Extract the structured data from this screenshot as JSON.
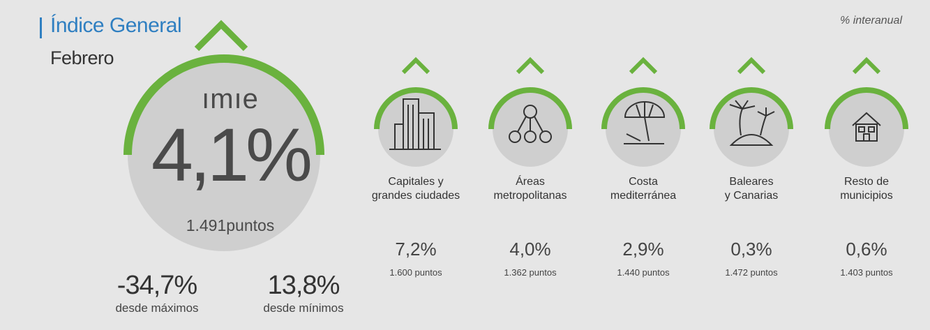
{
  "header": {
    "title": "Índice General",
    "month": "Febrero",
    "yoy_note": "% interanual"
  },
  "main": {
    "brand": "ımıe",
    "value": "4,1%",
    "points": "1.491puntos",
    "trend": "up"
  },
  "stats": [
    {
      "value": "-34,7%",
      "label": "desde máximos"
    },
    {
      "value": "13,8%",
      "label": "desde mínimos"
    }
  ],
  "categories": [
    {
      "line1": "Capitales y",
      "line2": "grandes ciudades",
      "value": "7,2%",
      "points": "1.600 puntos",
      "icon": "buildings-icon",
      "trend": "up"
    },
    {
      "line1": "Áreas",
      "line2": "metropolitanas",
      "value": "4,0%",
      "points": "1.362 puntos",
      "icon": "network-icon",
      "trend": "up"
    },
    {
      "line1": "Costa",
      "line2": "mediterránea",
      "value": "2,9%",
      "points": "1.440 puntos",
      "icon": "beach-umbrella-icon",
      "trend": "up"
    },
    {
      "line1": "Baleares",
      "line2": "y Canarias",
      "value": "0,3%",
      "points": "1.472 puntos",
      "icon": "island-icon",
      "trend": "up"
    },
    {
      "line1": "Resto de",
      "line2": "municipios",
      "value": "0,6%",
      "points": "1.403 puntos",
      "icon": "house-icon",
      "trend": "up"
    }
  ],
  "colors": {
    "accent_green": "#6ab23e",
    "title_blue": "#2f7fc1",
    "circle_gray": "#cfcfcf",
    "background": "#e6e6e6"
  }
}
